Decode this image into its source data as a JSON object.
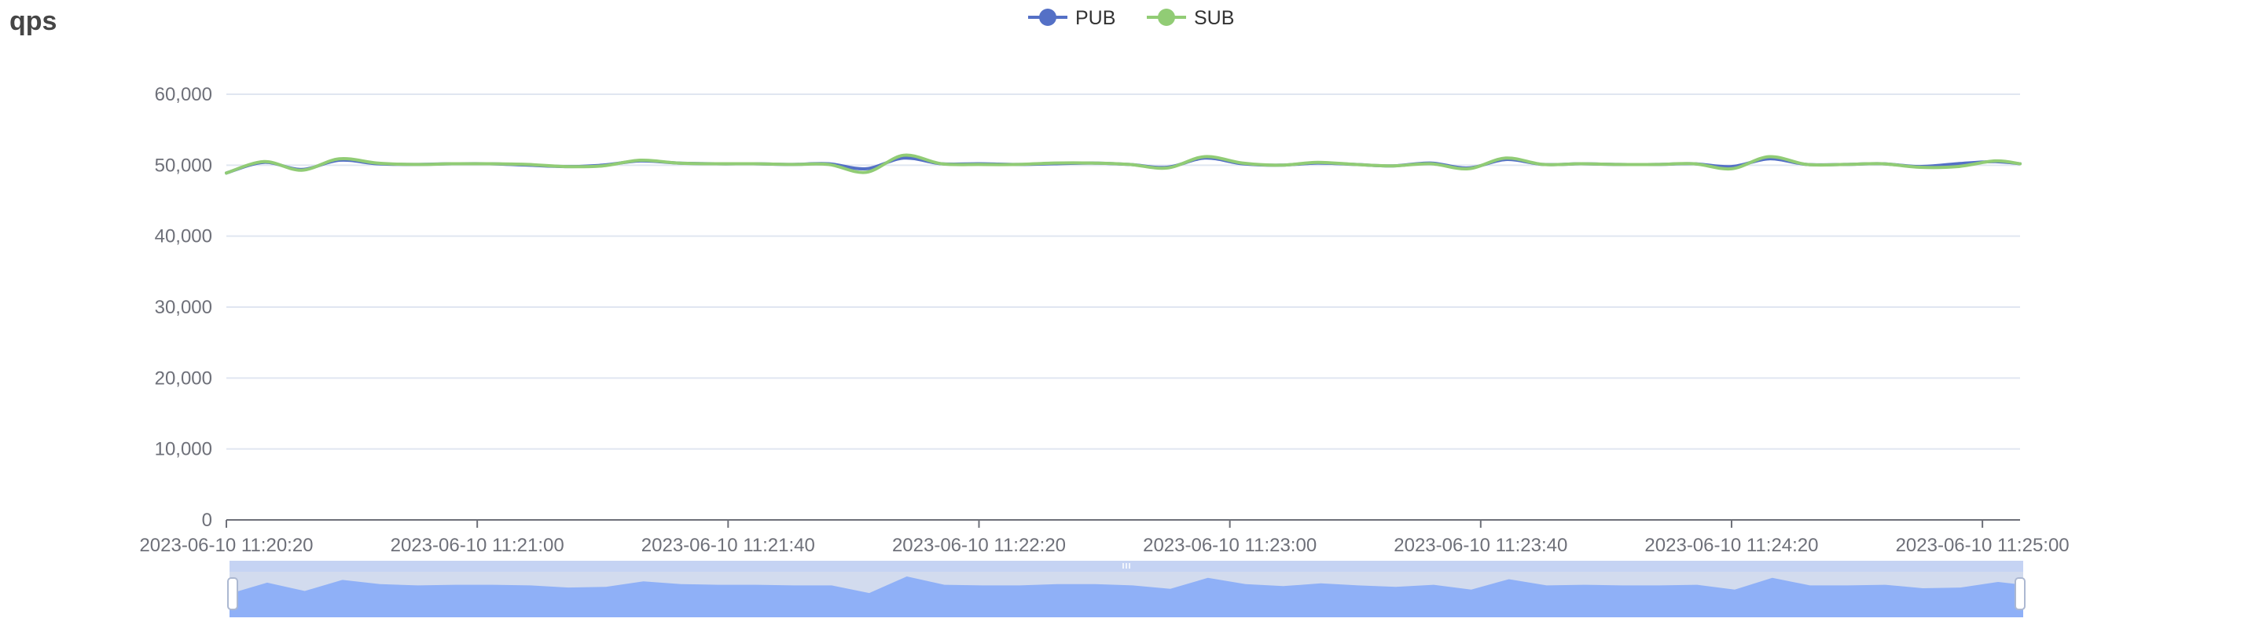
{
  "title": "qps",
  "chart_data": {
    "type": "line",
    "title": "qps",
    "xlabel": "",
    "ylabel": "",
    "ylim": [
      0,
      60000
    ],
    "y_ticks": [
      "0",
      "10,000",
      "20,000",
      "30,000",
      "40,000",
      "50,000",
      "60,000"
    ],
    "x_range": [
      "2023-06-10 11:20:20",
      "2023-06-10 11:25:06"
    ],
    "x_ticks": [
      "2023-06-10 11:20:20",
      "2023-06-10 11:21:00",
      "2023-06-10 11:21:40",
      "2023-06-10 11:22:20",
      "2023-06-10 11:23:00",
      "2023-06-10 11:23:40",
      "2023-06-10 11:24:20",
      "2023-06-10 11:25:00"
    ],
    "legend_position": "top-center",
    "grid": true,
    "x": [
      "2023-06-10 11:20:20",
      "2023-06-10 11:20:26",
      "2023-06-10 11:20:32",
      "2023-06-10 11:20:38",
      "2023-06-10 11:20:44",
      "2023-06-10 11:20:50",
      "2023-06-10 11:20:56",
      "2023-06-10 11:21:02",
      "2023-06-10 11:21:08",
      "2023-06-10 11:21:14",
      "2023-06-10 11:21:20",
      "2023-06-10 11:21:26",
      "2023-06-10 11:21:32",
      "2023-06-10 11:21:38",
      "2023-06-10 11:21:44",
      "2023-06-10 11:21:50",
      "2023-06-10 11:21:56",
      "2023-06-10 11:22:02",
      "2023-06-10 11:22:08",
      "2023-06-10 11:22:14",
      "2023-06-10 11:22:20",
      "2023-06-10 11:22:26",
      "2023-06-10 11:22:32",
      "2023-06-10 11:22:38",
      "2023-06-10 11:22:44",
      "2023-06-10 11:22:50",
      "2023-06-10 11:22:56",
      "2023-06-10 11:23:02",
      "2023-06-10 11:23:08",
      "2023-06-10 11:23:14",
      "2023-06-10 11:23:20",
      "2023-06-10 11:23:26",
      "2023-06-10 11:23:32",
      "2023-06-10 11:23:38",
      "2023-06-10 11:23:44",
      "2023-06-10 11:23:50",
      "2023-06-10 11:23:56",
      "2023-06-10 11:24:02",
      "2023-06-10 11:24:08",
      "2023-06-10 11:24:14",
      "2023-06-10 11:24:20",
      "2023-06-10 11:24:26",
      "2023-06-10 11:24:32",
      "2023-06-10 11:24:38",
      "2023-06-10 11:24:44",
      "2023-06-10 11:24:50",
      "2023-06-10 11:24:56",
      "2023-06-10 11:25:02",
      "2023-06-10 11:25:06"
    ],
    "series": [
      {
        "name": "PUB",
        "color": "#5470c6",
        "values": [
          48900,
          50400,
          49400,
          50700,
          50200,
          50100,
          50200,
          50200,
          50000,
          49800,
          50000,
          50600,
          50300,
          50200,
          50200,
          50100,
          50200,
          49500,
          51000,
          50200,
          50200,
          50100,
          50200,
          50300,
          50100,
          49700,
          51000,
          50200,
          50000,
          50300,
          50100,
          49900,
          50300,
          49600,
          50800,
          50100,
          50200,
          50100,
          50100,
          50200,
          49800,
          50900,
          50100,
          50100,
          50200,
          49800,
          50200,
          50500,
          50200
        ]
      },
      {
        "name": "SUB",
        "color": "#91cc75",
        "values": [
          48900,
          50500,
          49300,
          50900,
          50300,
          50100,
          50200,
          50200,
          50100,
          49800,
          49900,
          50700,
          50300,
          50200,
          50200,
          50100,
          50100,
          49000,
          51400,
          50200,
          50100,
          50100,
          50300,
          50300,
          50100,
          49600,
          51200,
          50300,
          50000,
          50400,
          50100,
          49900,
          50200,
          49500,
          51000,
          50100,
          50200,
          50100,
          50100,
          50200,
          49500,
          51200,
          50100,
          50100,
          50200,
          49700,
          49800,
          50600,
          50200
        ]
      }
    ]
  },
  "datazoom": {
    "handle_icon": "drag-handle-icon",
    "fill_color": "#8fb0f7",
    "band_color": "#d2dbee"
  }
}
